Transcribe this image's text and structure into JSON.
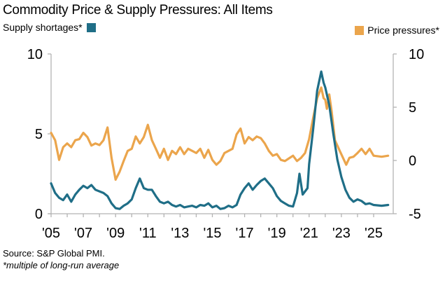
{
  "chart_data": {
    "type": "line",
    "title": "Commodity Price & Supply Pressures: All Items",
    "source": "Source: S&P Global PMI.",
    "note": "*multiple of long-run average",
    "xlabel": "",
    "x_tick_labels": [
      "'05",
      "'07",
      "'09",
      "'11",
      "'13",
      "'15",
      "'17",
      "'19",
      "'21",
      "'23",
      "'25"
    ],
    "x_ticks": [
      2005,
      2006,
      2007,
      2008,
      2009,
      2010,
      2011,
      2012,
      2013,
      2014,
      2015,
      2016,
      2017,
      2018,
      2019,
      2020,
      2021,
      2022,
      2023,
      2024,
      2025
    ],
    "x_range": [
      2005,
      2026.2
    ],
    "y_left": {
      "label": "Supply shortages*",
      "range": [
        0,
        10
      ],
      "ticks": [
        0,
        5,
        10
      ],
      "tick_labels": [
        "0",
        "5",
        "10"
      ]
    },
    "y_right": {
      "label": "Price pressures*",
      "range": [
        -5,
        10
      ],
      "ticks": [
        -5,
        0,
        5,
        10
      ],
      "tick_labels": [
        "-5",
        "0",
        "5",
        "10"
      ]
    },
    "grid": false,
    "series": [
      {
        "name": "Supply shortages*",
        "axis": "left",
        "color": "#1f6e87",
        "legend_position": "top-left",
        "x": [
          2005.0,
          2005.25,
          2005.5,
          2005.75,
          2006.0,
          2006.25,
          2006.5,
          2006.75,
          2007.0,
          2007.25,
          2007.5,
          2007.75,
          2008.0,
          2008.25,
          2008.5,
          2008.75,
          2009.0,
          2009.25,
          2009.5,
          2009.75,
          2010.0,
          2010.25,
          2010.5,
          2010.75,
          2011.0,
          2011.25,
          2011.5,
          2011.75,
          2012.0,
          2012.25,
          2012.5,
          2012.75,
          2013.0,
          2013.25,
          2013.5,
          2013.75,
          2014.0,
          2014.25,
          2014.5,
          2014.75,
          2015.0,
          2015.25,
          2015.5,
          2015.75,
          2016.0,
          2016.25,
          2016.5,
          2016.75,
          2017.0,
          2017.25,
          2017.5,
          2017.75,
          2018.0,
          2018.25,
          2018.5,
          2018.75,
          2019.0,
          2019.25,
          2019.5,
          2019.75,
          2020.0,
          2020.25,
          2020.4,
          2020.6,
          2020.9,
          2021.0,
          2021.25,
          2021.5,
          2021.75,
          2021.9,
          2022.0,
          2022.25,
          2022.5,
          2022.75,
          2023.0,
          2023.25,
          2023.5,
          2023.75,
          2024.0,
          2024.25,
          2024.5,
          2024.75,
          2025.0,
          2025.5,
          2025.9
        ],
        "values": [
          1.9,
          1.3,
          1.0,
          0.85,
          1.2,
          0.75,
          1.2,
          1.5,
          1.75,
          1.6,
          1.8,
          1.5,
          1.4,
          1.3,
          1.1,
          0.65,
          0.35,
          0.3,
          0.5,
          0.65,
          0.9,
          1.6,
          2.2,
          1.6,
          1.5,
          1.5,
          1.1,
          0.75,
          0.65,
          0.75,
          0.55,
          0.45,
          0.55,
          0.4,
          0.45,
          0.5,
          0.4,
          0.55,
          0.5,
          0.65,
          0.4,
          0.5,
          0.3,
          0.35,
          0.5,
          0.4,
          0.55,
          1.2,
          1.6,
          1.9,
          1.5,
          1.8,
          2.05,
          2.2,
          1.9,
          1.6,
          1.1,
          0.8,
          0.65,
          0.5,
          0.45,
          1.3,
          2.5,
          1.2,
          1.6,
          3.1,
          5.3,
          7.7,
          8.9,
          8.2,
          7.9,
          6.8,
          5.0,
          3.4,
          2.3,
          1.5,
          1.0,
          0.75,
          0.9,
          0.8,
          0.6,
          0.65,
          0.55,
          0.5,
          0.55
        ]
      },
      {
        "name": "Price pressures*",
        "axis": "right",
        "color": "#eba54c",
        "legend_position": "top-right",
        "x": [
          2005.0,
          2005.25,
          2005.5,
          2005.75,
          2006.0,
          2006.25,
          2006.5,
          2006.75,
          2007.0,
          2007.25,
          2007.5,
          2007.75,
          2008.0,
          2008.25,
          2008.5,
          2008.75,
          2009.0,
          2009.25,
          2009.5,
          2009.75,
          2010.0,
          2010.25,
          2010.5,
          2010.75,
          2011.0,
          2011.25,
          2011.5,
          2011.75,
          2012.0,
          2012.25,
          2012.5,
          2012.75,
          2013.0,
          2013.25,
          2013.5,
          2013.75,
          2014.0,
          2014.25,
          2014.5,
          2014.75,
          2015.0,
          2015.25,
          2015.5,
          2015.75,
          2016.0,
          2016.25,
          2016.5,
          2016.75,
          2017.0,
          2017.25,
          2017.5,
          2017.75,
          2018.0,
          2018.25,
          2018.5,
          2018.75,
          2019.0,
          2019.25,
          2019.5,
          2019.75,
          2020.0,
          2020.25,
          2020.5,
          2020.75,
          2021.0,
          2021.25,
          2021.5,
          2021.75,
          2021.9,
          2022.0,
          2022.1,
          2022.25,
          2022.4,
          2022.6,
          2022.9,
          2023.1,
          2023.3,
          2023.5,
          2023.75,
          2024.0,
          2024.25,
          2024.5,
          2024.75,
          2025.0,
          2025.5,
          2025.9
        ],
        "values": [
          2.6,
          1.9,
          0.05,
          1.25,
          1.6,
          1.25,
          1.9,
          2.0,
          2.6,
          2.2,
          1.4,
          1.6,
          1.45,
          1.9,
          3.1,
          0.25,
          -1.8,
          -1.05,
          -0.05,
          0.9,
          1.1,
          2.25,
          1.6,
          2.2,
          3.35,
          1.9,
          1.1,
          0.25,
          1.1,
          0.05,
          0.9,
          0.6,
          1.25,
          0.6,
          1.1,
          0.9,
          0.7,
          1.1,
          0.25,
          1.0,
          0.05,
          -0.4,
          -0.05,
          0.7,
          0.9,
          1.1,
          2.45,
          3.0,
          1.6,
          2.2,
          1.9,
          2.25,
          2.1,
          1.6,
          0.9,
          0.45,
          0.6,
          0.05,
          -0.05,
          0.2,
          0.45,
          -0.05,
          0.25,
          0.7,
          2.0,
          4.0,
          5.85,
          6.85,
          5.85,
          5.7,
          4.85,
          6.2,
          4.55,
          1.9,
          0.9,
          0.25,
          -0.4,
          0.25,
          0.35,
          0.7,
          1.1,
          0.6,
          1.1,
          0.45,
          0.35,
          0.45
        ]
      }
    ]
  }
}
